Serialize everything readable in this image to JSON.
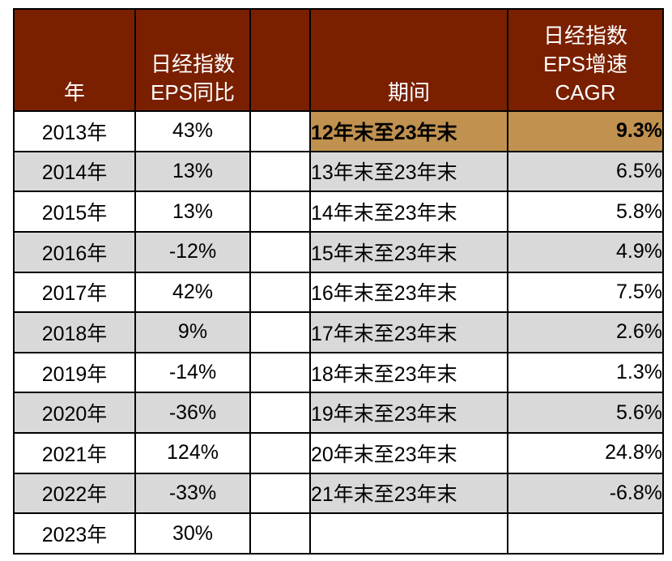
{
  "headers": {
    "year": "年",
    "yoy_line1": "日经指数",
    "yoy_line2": "EPS同比",
    "period": "期间",
    "cagr_line1": "日经指数",
    "cagr_line2": "EPS增速",
    "cagr_line3": "CAGR"
  },
  "colors": {
    "header_bg": "#7a2000",
    "header_text": "#ffffff",
    "alt_row_bg": "#d9d9d9",
    "highlight_bg": "#c0914f"
  },
  "rows": [
    {
      "year": "2013年",
      "yoy": "43%",
      "period": "12年末至23年末",
      "cagr": "9.3%"
    },
    {
      "year": "2014年",
      "yoy": "13%",
      "period": "13年末至23年末",
      "cagr": "6.5%"
    },
    {
      "year": "2015年",
      "yoy": "13%",
      "period": "14年末至23年末",
      "cagr": "5.8%"
    },
    {
      "year": "2016年",
      "yoy": "-12%",
      "period": "15年末至23年末",
      "cagr": "4.9%"
    },
    {
      "year": "2017年",
      "yoy": "42%",
      "period": "16年末至23年末",
      "cagr": "7.5%"
    },
    {
      "year": "2018年",
      "yoy": "9%",
      "period": "17年末至23年末",
      "cagr": "2.6%"
    },
    {
      "year": "2019年",
      "yoy": "-14%",
      "period": "18年末至23年末",
      "cagr": "1.3%"
    },
    {
      "year": "2020年",
      "yoy": "-36%",
      "period": "19年末至23年末",
      "cagr": "5.6%"
    },
    {
      "year": "2021年",
      "yoy": "124%",
      "period": "20年末至23年末",
      "cagr": "24.8%"
    },
    {
      "year": "2022年",
      "yoy": "-33%",
      "period": "21年末至23年末",
      "cagr": "-6.8%"
    },
    {
      "year": "2023年",
      "yoy": "30%",
      "period": "",
      "cagr": ""
    }
  ]
}
